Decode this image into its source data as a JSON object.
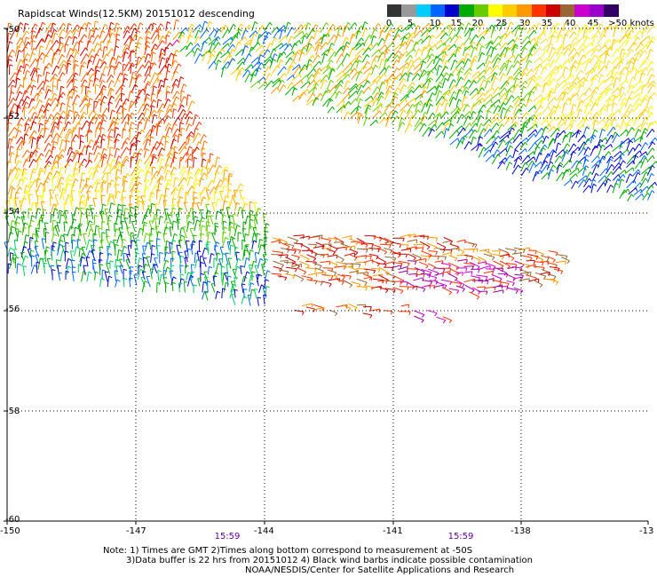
{
  "title": "Rapidscat Winds(12.5KM) 20151012 descending",
  "legend": {
    "labels": [
      "0",
      "5",
      "10",
      "15",
      "20",
      "25",
      "30",
      "35",
      "40",
      "45",
      ">50 knots"
    ],
    "colors": [
      "#333333",
      "#999999",
      "#00ccff",
      "#0066ff",
      "#0000cc",
      "#00aa00",
      "#66cc00",
      "#ffff00",
      "#ffcc00",
      "#ff9900",
      "#ff3300",
      "#cc0000",
      "#996633",
      "#cc00cc",
      "#9900cc",
      "#330066"
    ]
  },
  "map": {
    "lon_ticks": [
      "-150",
      "-147",
      "-144",
      "-141",
      "-138",
      "-13"
    ],
    "lat_ticks": [
      "-50",
      "-52",
      "-54",
      "-56",
      "-58",
      "-60"
    ],
    "lon_range": [
      -150,
      -135
    ],
    "lat_range": [
      -60,
      -50
    ]
  },
  "time_labels": [
    "15:59",
    "15:59"
  ],
  "notes": {
    "line1": "Note: 1) Times are GMT 2)Times along bottom correspond to measurement at -50S",
    "line2": "3)Data buffer is 22 hrs from 20151012 4) Black wind barbs indicate possible contamination",
    "line3": "NOAA/NESDIS/Center for Satellite Applications and Research"
  }
}
